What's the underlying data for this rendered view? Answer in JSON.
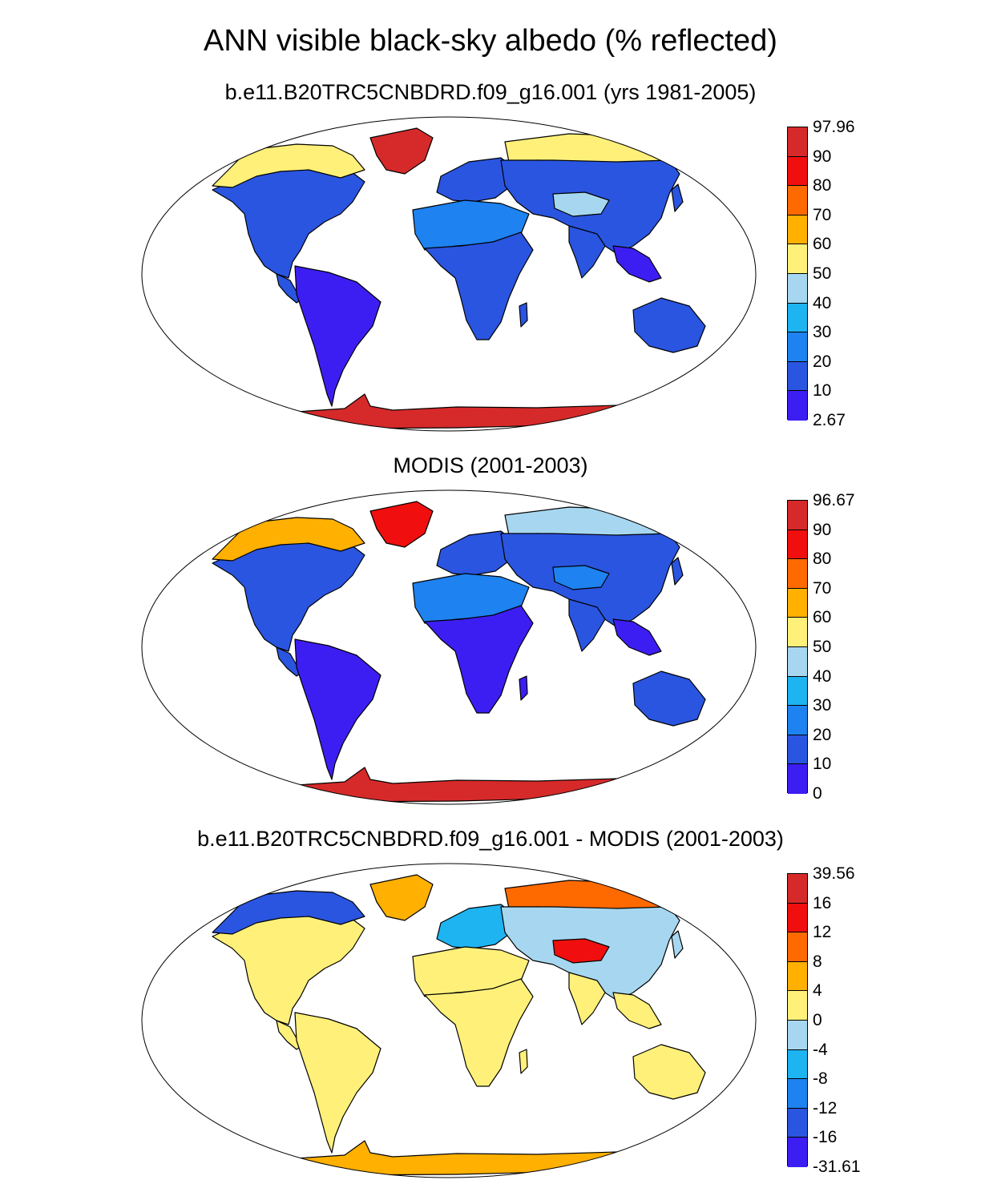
{
  "title": "ANN visible black-sky albedo (% reflected)",
  "panels": [
    {
      "title": "b.e11.B20TRC5CNBDRD.f09_g16.001 (yrs 1981-2005)",
      "colorbar": {
        "labels": [
          "97.96",
          "90",
          "80",
          "70",
          "60",
          "50",
          "40",
          "30",
          "20",
          "10",
          "2.67"
        ],
        "colors": [
          "#d62a2a",
          "#f00e0e",
          "#ff6a00",
          "#ffb000",
          "#fff07a",
          "#a7d7f0",
          "#1eb4f2",
          "#1e82f0",
          "#2a55e0",
          "#3d1ef2"
        ]
      }
    },
    {
      "title": "MODIS (2001-2003)",
      "colorbar": {
        "labels": [
          "96.67",
          "90",
          "80",
          "70",
          "60",
          "50",
          "40",
          "30",
          "20",
          "10",
          "0"
        ],
        "colors": [
          "#d62a2a",
          "#f00e0e",
          "#ff6a00",
          "#ffb000",
          "#fff07a",
          "#a7d7f0",
          "#1eb4f2",
          "#1e82f0",
          "#2a55e0",
          "#3d1ef2"
        ]
      }
    },
    {
      "title": "b.e11.B20TRC5CNBDRD.f09_g16.001 - MODIS (2001-2003)",
      "colorbar": {
        "labels": [
          "39.56",
          "16",
          "12",
          "8",
          "4",
          "0",
          "-4",
          "-8",
          "-12",
          "-16",
          "-31.61"
        ],
        "colors": [
          "#d62a2a",
          "#f00e0e",
          "#ff6a00",
          "#ffb000",
          "#fff07a",
          "#a7d7f0",
          "#1eb4f2",
          "#1e82f0",
          "#2a55e0",
          "#3d1ef2"
        ]
      }
    }
  ],
  "chart_data": [
    {
      "type": "heatmap",
      "title": "b.e11.B20TRC5CNBDRD.f09_g16.001 (yrs 1981-2005)",
      "projection": "robinson",
      "colorbar_range": [
        2.67,
        97.96
      ],
      "region_values": {
        "antarctica": 95,
        "greenland": 92,
        "north_america_arctic": 58,
        "north_america": 12,
        "south_america": 6,
        "africa_south": 12,
        "sahara": 28,
        "europe": 12,
        "siberia_arctic": 58,
        "asia": 12,
        "tibet": 45,
        "india": 12,
        "southeast_asia": 8,
        "australia": 16
      }
    },
    {
      "type": "heatmap",
      "title": "MODIS (2001-2003)",
      "projection": "robinson",
      "colorbar_range": [
        0,
        96.67
      ],
      "region_values": {
        "antarctica": 95,
        "greenland": 88,
        "north_america_arctic": 65,
        "north_america": 12,
        "south_america": 6,
        "africa_south": 8,
        "sahara": 26,
        "europe": 14,
        "siberia_arctic": 45,
        "asia": 14,
        "tibet": 20,
        "india": 10,
        "southeast_asia": 8,
        "australia": 12
      }
    },
    {
      "type": "heatmap",
      "title": "b.e11.B20TRC5CNBDRD.f09_g16.001 - MODIS (2001-2003)",
      "projection": "robinson",
      "colorbar_range": [
        -31.61,
        39.56
      ],
      "region_values": {
        "antarctica": 6,
        "greenland": 7,
        "north_america_arctic": -14,
        "north_america": 2,
        "south_america": 2,
        "africa_south": 2,
        "sahara": 3,
        "europe": -6,
        "siberia_arctic": 10,
        "asia": -4,
        "tibet": 14,
        "india": 2,
        "southeast_asia": 1,
        "australia": 2
      }
    }
  ]
}
